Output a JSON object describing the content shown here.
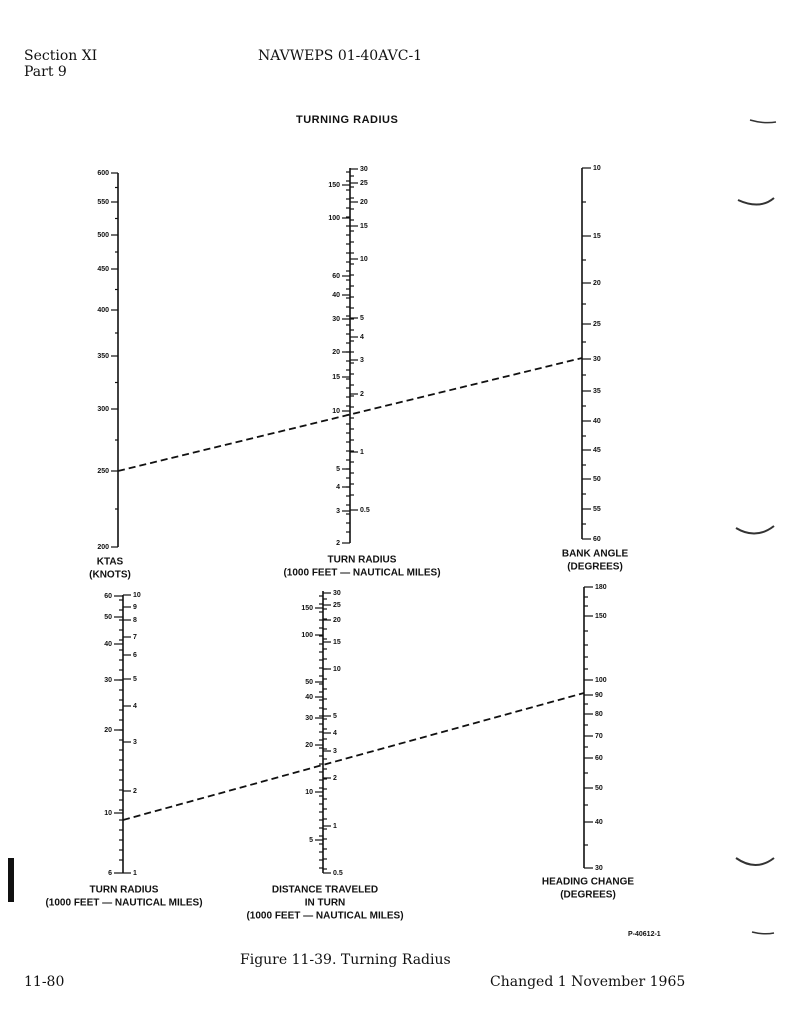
{
  "header": {
    "section": "Section XI",
    "part": "Part 9",
    "doc_id": "NAVWEPS 01-40AVC-1"
  },
  "figure_title": "TURNING RADIUS",
  "scales": {
    "ktas": {
      "label": [
        "KTAS",
        "(KNOTS)"
      ],
      "ticks": [
        "600",
        "550",
        "500",
        "450",
        "400",
        "350",
        "300",
        "250",
        "200"
      ]
    },
    "turn_radius_top": {
      "label": [
        "TURN RADIUS",
        "(1000 FEET — NAUTICAL MILES)"
      ],
      "feet_ticks": [
        "150",
        "100",
        "60",
        "40",
        "30",
        "20",
        "15",
        "10",
        "5",
        "4",
        "3",
        "2"
      ],
      "nm_ticks": [
        "30",
        "25",
        "20",
        "15",
        "10",
        "5",
        "4",
        "3",
        "2",
        "1",
        "0.5"
      ]
    },
    "bank_angle": {
      "label": [
        "BANK ANGLE",
        "(DEGREES)"
      ],
      "ticks": [
        "10",
        "15",
        "20",
        "25",
        "30",
        "35",
        "40",
        "45",
        "50",
        "55",
        "60"
      ]
    },
    "turn_radius_bottom": {
      "label": [
        "TURN RADIUS",
        "(1000 FEET — NAUTICAL MILES)"
      ],
      "feet_ticks": [
        "60",
        "50",
        "40",
        "30",
        "20",
        "10",
        "6"
      ],
      "nm_ticks": [
        "10",
        "9",
        "8",
        "7",
        "6",
        "5",
        "4",
        "3",
        "2",
        "1"
      ]
    },
    "distance_traveled": {
      "label": [
        "DISTANCE TRAVELED",
        "IN TURN",
        "(1000 FEET — NAUTICAL MILES)"
      ],
      "feet_ticks": [
        "150",
        "100",
        "50",
        "40",
        "30",
        "20",
        "10",
        "5"
      ],
      "nm_ticks": [
        "30",
        "25",
        "20",
        "15",
        "10",
        "5",
        "4",
        "3",
        "2",
        "1",
        "0.5"
      ]
    },
    "heading_change": {
      "label": [
        "HEADING CHANGE",
        "(DEGREES)"
      ],
      "ticks": [
        "180",
        "150",
        "100",
        "90",
        "80",
        "70",
        "60",
        "50",
        "40",
        "30"
      ]
    }
  },
  "example_lines": [
    {
      "name": "top",
      "from": "KTAS 250",
      "through": "TURN RADIUS 9.5 (1000 FEET)",
      "to": "BANK ANGLE 30"
    },
    {
      "name": "bottom",
      "from": "TURN RADIUS 9.5",
      "through": "DISTANCE TRAVELED 15",
      "to": "HEADING CHANGE 90"
    }
  ],
  "plate_number": "P-40612-1",
  "caption": "Figure 11-39.  Turning Radius",
  "footer": {
    "page": "11-80",
    "change": "Changed 1 November 1965"
  }
}
